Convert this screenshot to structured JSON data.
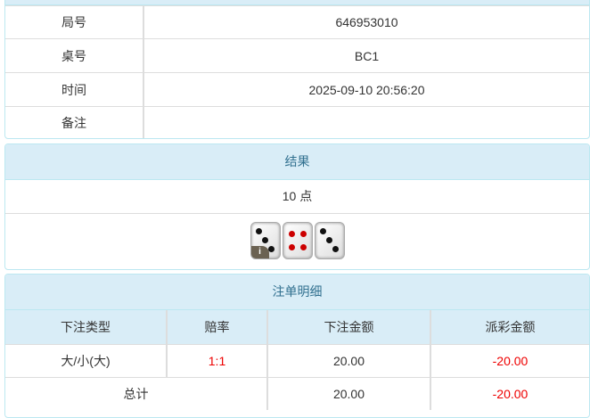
{
  "info": {
    "rows": [
      {
        "label": "局号",
        "value": "646953010"
      },
      {
        "label": "桌号",
        "value": "BC1"
      },
      {
        "label": "时间",
        "value": "2025-09-10 20:56:20"
      },
      {
        "label": "备注",
        "value": ""
      }
    ]
  },
  "result": {
    "title": "结果",
    "points": "10 点",
    "dice": [
      3,
      4,
      3
    ],
    "info_icon": "i"
  },
  "bets": {
    "title": "注单明细",
    "headers": [
      "下注类型",
      "赔率",
      "下注金额",
      "派彩金额"
    ],
    "rows": [
      {
        "type": "大/小(大)",
        "odds": "1:1",
        "amount": "20.00",
        "payout": "-20.00"
      }
    ],
    "total": {
      "label": "总计",
      "amount": "20.00",
      "payout": "-20.00"
    }
  },
  "colors": {
    "header_bg": "#d9edf7",
    "header_text": "#31708f",
    "negative": "#ee0000"
  }
}
